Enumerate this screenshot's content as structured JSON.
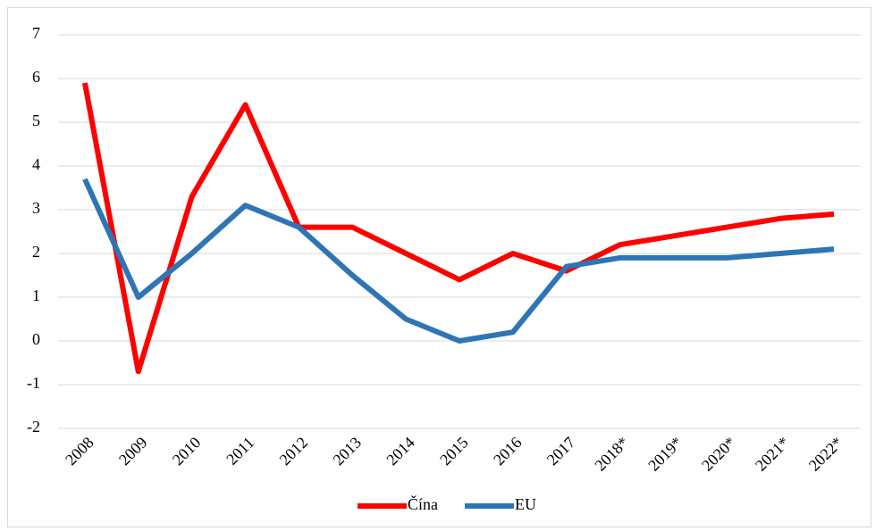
{
  "chart_data": {
    "type": "line",
    "categories": [
      "2008",
      "2009",
      "2010",
      "2011",
      "2012",
      "2013",
      "2014",
      "2015",
      "2016",
      "2017",
      "2018*",
      "2019*",
      "2020*",
      "2021*",
      "2022*"
    ],
    "series": [
      {
        "name": "Čína",
        "color": "#ff0000",
        "values": [
          5.9,
          -0.7,
          3.3,
          5.4,
          2.6,
          2.6,
          2.0,
          1.4,
          2.0,
          1.6,
          2.2,
          2.4,
          2.6,
          2.8,
          2.9
        ]
      },
      {
        "name": "EU",
        "color": "#2e75b6",
        "values": [
          3.7,
          1.0,
          2.0,
          3.1,
          2.6,
          1.5,
          0.5,
          0.0,
          0.2,
          1.7,
          1.9,
          1.9,
          1.9,
          2.0,
          2.1
        ]
      }
    ],
    "ylim": [
      -2,
      7
    ],
    "yticks": [
      -2,
      -1,
      0,
      1,
      2,
      3,
      4,
      5,
      6,
      7
    ],
    "grid": true,
    "legend": "bottom"
  }
}
